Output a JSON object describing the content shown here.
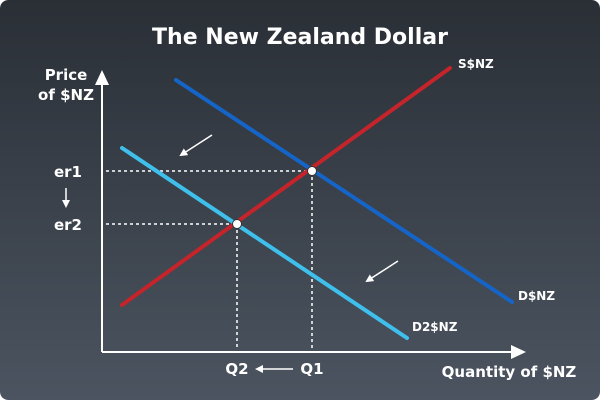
{
  "title": "The New Zealand Dollar",
  "axes": {
    "y_label_line1": "Price",
    "y_label_line2": "of $NZ",
    "x_label": "Quantity of $NZ"
  },
  "curves": {
    "supply": "S$NZ",
    "demand": "D$NZ",
    "demand_shifted": "D2$NZ"
  },
  "price_levels": {
    "er1": "er1",
    "er2": "er2"
  },
  "quantity_levels": {
    "q1": "Q1",
    "q2": "Q2"
  },
  "colors": {
    "background_top": "#2a2f36",
    "background_bottom": "#4b5460",
    "supply": "#c4242a",
    "demand": "#1565c8",
    "demand_shifted": "#3fc0ec",
    "axis_text": "#ffffff"
  },
  "icons": {
    "shift_arrow": "arrow-down-left-icon",
    "price_arrow": "arrow-down-icon",
    "quantity_arrow": "arrow-left-icon"
  }
}
